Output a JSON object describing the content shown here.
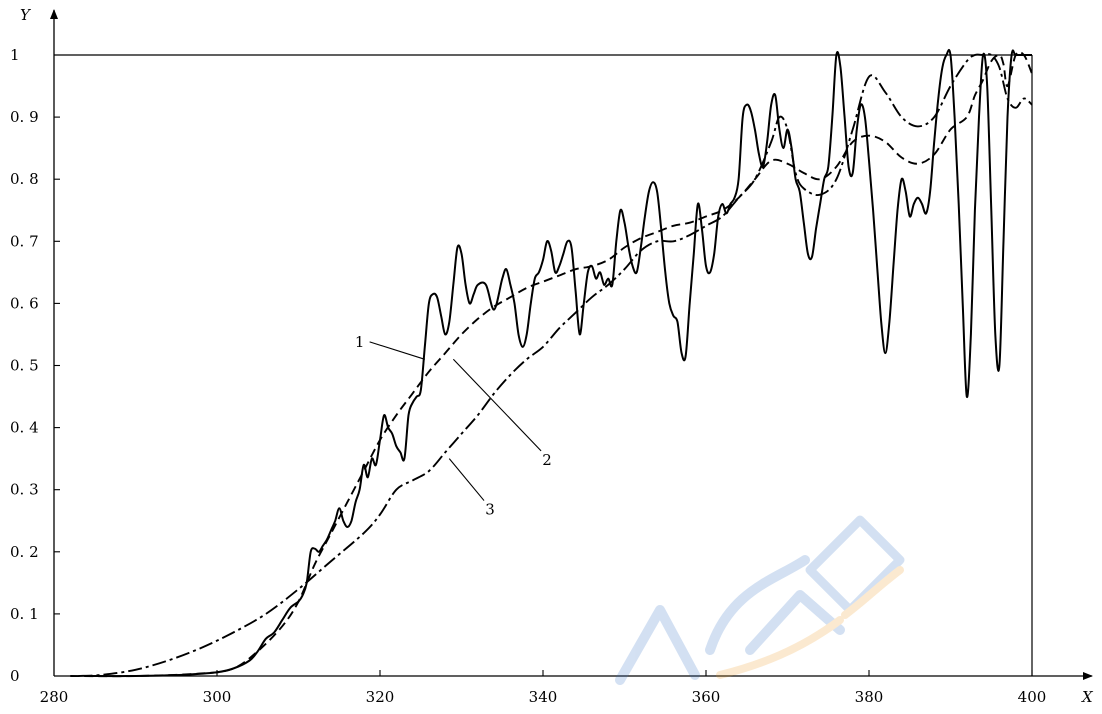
{
  "chart_data": {
    "type": "line",
    "title": "",
    "xlabel": "X",
    "ylabel": "Y",
    "xlim": [
      280,
      400
    ],
    "ylim": [
      0,
      1
    ],
    "grid": false,
    "x_ticks": [
      "280",
      "300",
      "320",
      "340",
      "360",
      "380",
      "400"
    ],
    "y_ticks": [
      "0",
      "0.1",
      "0.2",
      "0.3",
      "0.4",
      "0.5",
      "0.6",
      "0.7",
      "0.8",
      "0.9",
      "1"
    ],
    "series": [
      {
        "name": "1",
        "style": "solid",
        "points": [
          [
            284,
            0
          ],
          [
            290,
            0
          ],
          [
            296,
            0.002
          ],
          [
            300,
            0.006
          ],
          [
            302,
            0.012
          ],
          [
            304,
            0.025
          ],
          [
            305,
            0.04
          ],
          [
            306,
            0.06
          ],
          [
            307,
            0.07
          ],
          [
            308,
            0.09
          ],
          [
            309,
            0.11
          ],
          [
            310,
            0.12
          ],
          [
            310.5,
            0.13
          ],
          [
            311,
            0.15
          ],
          [
            311.5,
            0.2
          ],
          [
            312,
            0.205
          ],
          [
            312.5,
            0.2
          ],
          [
            313,
            0.21
          ],
          [
            313.5,
            0.22
          ],
          [
            314,
            0.235
          ],
          [
            314.5,
            0.25
          ],
          [
            315,
            0.27
          ],
          [
            315.5,
            0.25
          ],
          [
            316,
            0.24
          ],
          [
            316.5,
            0.25
          ],
          [
            317,
            0.28
          ],
          [
            317.5,
            0.3
          ],
          [
            318,
            0.34
          ],
          [
            318.5,
            0.32
          ],
          [
            319,
            0.35
          ],
          [
            319.5,
            0.34
          ],
          [
            320,
            0.38
          ],
          [
            320.5,
            0.42
          ],
          [
            321,
            0.4
          ],
          [
            321.5,
            0.39
          ],
          [
            322,
            0.37
          ],
          [
            322.5,
            0.36
          ],
          [
            323,
            0.35
          ],
          [
            323.5,
            0.42
          ],
          [
            324,
            0.44
          ],
          [
            324.5,
            0.45
          ],
          [
            325,
            0.46
          ],
          [
            325.5,
            0.53
          ],
          [
            326,
            0.6
          ],
          [
            326.5,
            0.615
          ],
          [
            327,
            0.61
          ],
          [
            327.5,
            0.58
          ],
          [
            328,
            0.55
          ],
          [
            328.5,
            0.57
          ],
          [
            329,
            0.63
          ],
          [
            329.5,
            0.69
          ],
          [
            330,
            0.68
          ],
          [
            330.5,
            0.63
          ],
          [
            331,
            0.6
          ],
          [
            331.5,
            0.615
          ],
          [
            332,
            0.63
          ],
          [
            333,
            0.63
          ],
          [
            334,
            0.59
          ],
          [
            335,
            0.64
          ],
          [
            335.5,
            0.655
          ],
          [
            336,
            0.63
          ],
          [
            336.5,
            0.6
          ],
          [
            337,
            0.55
          ],
          [
            337.5,
            0.53
          ],
          [
            338,
            0.55
          ],
          [
            338.5,
            0.6
          ],
          [
            339,
            0.64
          ],
          [
            339.5,
            0.65
          ],
          [
            340,
            0.67
          ],
          [
            340.5,
            0.7
          ],
          [
            341,
            0.685
          ],
          [
            341.5,
            0.65
          ],
          [
            342,
            0.66
          ],
          [
            342.5,
            0.68
          ],
          [
            343,
            0.7
          ],
          [
            343.5,
            0.69
          ],
          [
            344,
            0.62
          ],
          [
            344.5,
            0.55
          ],
          [
            345,
            0.6
          ],
          [
            345.5,
            0.65
          ],
          [
            346,
            0.66
          ],
          [
            346.5,
            0.64
          ],
          [
            347,
            0.65
          ],
          [
            347.5,
            0.63
          ],
          [
            348,
            0.64
          ],
          [
            348.5,
            0.63
          ],
          [
            349,
            0.7
          ],
          [
            349.5,
            0.75
          ],
          [
            350,
            0.73
          ],
          [
            350.5,
            0.69
          ],
          [
            351,
            0.66
          ],
          [
            351.5,
            0.65
          ],
          [
            352,
            0.69
          ],
          [
            352.5,
            0.74
          ],
          [
            353,
            0.78
          ],
          [
            353.5,
            0.795
          ],
          [
            354,
            0.78
          ],
          [
            354.5,
            0.72
          ],
          [
            355,
            0.65
          ],
          [
            355.5,
            0.6
          ],
          [
            356,
            0.58
          ],
          [
            356.5,
            0.57
          ],
          [
            357,
            0.52
          ],
          [
            357.5,
            0.515
          ],
          [
            358,
            0.6
          ],
          [
            358.5,
            0.68
          ],
          [
            359,
            0.76
          ],
          [
            359.5,
            0.72
          ],
          [
            360,
            0.66
          ],
          [
            360.5,
            0.65
          ],
          [
            361,
            0.68
          ],
          [
            361.5,
            0.74
          ],
          [
            362,
            0.76
          ],
          [
            362.5,
            0.745
          ],
          [
            363,
            0.76
          ],
          [
            363.5,
            0.77
          ],
          [
            364,
            0.8
          ],
          [
            364.5,
            0.9
          ],
          [
            365,
            0.92
          ],
          [
            365.5,
            0.91
          ],
          [
            366,
            0.88
          ],
          [
            366.5,
            0.84
          ],
          [
            367,
            0.82
          ],
          [
            367.5,
            0.86
          ],
          [
            368,
            0.92
          ],
          [
            368.5,
            0.935
          ],
          [
            369,
            0.88
          ],
          [
            369.5,
            0.85
          ],
          [
            370,
            0.88
          ],
          [
            370.5,
            0.85
          ],
          [
            371,
            0.8
          ],
          [
            371.5,
            0.78
          ],
          [
            372,
            0.73
          ],
          [
            372.5,
            0.68
          ],
          [
            373,
            0.675
          ],
          [
            373.5,
            0.72
          ],
          [
            374,
            0.76
          ],
          [
            374.5,
            0.8
          ],
          [
            375,
            0.82
          ],
          [
            375.5,
            0.9
          ],
          [
            376,
            1
          ],
          [
            376.5,
            0.98
          ],
          [
            377,
            0.9
          ],
          [
            377.5,
            0.82
          ],
          [
            378,
            0.81
          ],
          [
            378.5,
            0.88
          ],
          [
            379,
            0.92
          ],
          [
            379.5,
            0.9
          ],
          [
            380,
            0.83
          ],
          [
            380.5,
            0.75
          ],
          [
            381,
            0.66
          ],
          [
            381.5,
            0.57
          ],
          [
            382,
            0.52
          ],
          [
            382.5,
            0.57
          ],
          [
            383,
            0.66
          ],
          [
            383.5,
            0.75
          ],
          [
            384,
            0.8
          ],
          [
            384.5,
            0.78
          ],
          [
            385,
            0.74
          ],
          [
            385.5,
            0.76
          ],
          [
            386,
            0.77
          ],
          [
            386.5,
            0.76
          ],
          [
            387,
            0.745
          ],
          [
            387.5,
            0.78
          ],
          [
            388,
            0.86
          ],
          [
            388.5,
            0.93
          ],
          [
            389,
            0.98
          ],
          [
            389.5,
            1
          ],
          [
            390,
            1
          ],
          [
            390.5,
            0.9
          ],
          [
            391,
            0.76
          ],
          [
            391.5,
            0.6
          ],
          [
            392,
            0.45
          ],
          [
            392.5,
            0.55
          ],
          [
            393,
            0.75
          ],
          [
            393.5,
            0.9
          ],
          [
            394,
            1
          ],
          [
            394.5,
            0.95
          ],
          [
            395,
            0.75
          ],
          [
            395.5,
            0.55
          ],
          [
            396,
            0.5
          ],
          [
            396.5,
            0.7
          ],
          [
            397,
            0.9
          ],
          [
            397.5,
            1
          ],
          [
            398,
            1
          ],
          [
            399,
            1
          ],
          [
            400,
            1
          ]
        ]
      },
      {
        "name": "2",
        "style": "dashed",
        "points": [
          [
            282,
            0
          ],
          [
            290,
            0
          ],
          [
            298,
            0.004
          ],
          [
            302,
            0.012
          ],
          [
            305,
            0.04
          ],
          [
            308,
            0.08
          ],
          [
            310,
            0.12
          ],
          [
            312,
            0.18
          ],
          [
            314,
            0.23
          ],
          [
            316,
            0.28
          ],
          [
            318,
            0.33
          ],
          [
            320,
            0.38
          ],
          [
            322,
            0.42
          ],
          [
            324,
            0.455
          ],
          [
            326,
            0.49
          ],
          [
            328,
            0.52
          ],
          [
            330,
            0.55
          ],
          [
            332,
            0.575
          ],
          [
            334,
            0.595
          ],
          [
            336,
            0.61
          ],
          [
            338,
            0.625
          ],
          [
            340,
            0.635
          ],
          [
            342,
            0.645
          ],
          [
            344,
            0.655
          ],
          [
            346,
            0.66
          ],
          [
            348,
            0.67
          ],
          [
            350,
            0.69
          ],
          [
            352,
            0.705
          ],
          [
            354,
            0.715
          ],
          [
            356,
            0.725
          ],
          [
            358,
            0.73
          ],
          [
            360,
            0.74
          ],
          [
            362,
            0.75
          ],
          [
            364,
            0.77
          ],
          [
            366,
            0.8
          ],
          [
            368,
            0.83
          ],
          [
            370,
            0.825
          ],
          [
            372,
            0.81
          ],
          [
            374,
            0.8
          ],
          [
            376,
            0.82
          ],
          [
            378,
            0.86
          ],
          [
            380,
            0.87
          ],
          [
            382,
            0.86
          ],
          [
            384,
            0.835
          ],
          [
            386,
            0.825
          ],
          [
            388,
            0.84
          ],
          [
            390,
            0.88
          ],
          [
            392,
            0.9
          ],
          [
            393,
            0.935
          ],
          [
            394,
            0.96
          ],
          [
            395,
            0.99
          ],
          [
            396,
            1
          ],
          [
            396.5,
            0.985
          ],
          [
            397,
            0.95
          ],
          [
            398,
            1
          ],
          [
            399,
            1
          ],
          [
            400,
            0.97
          ]
        ]
      },
      {
        "name": "3",
        "style": "dashdot",
        "points": [
          [
            283,
            0
          ],
          [
            286,
            0.002
          ],
          [
            290,
            0.01
          ],
          [
            294,
            0.025
          ],
          [
            298,
            0.045
          ],
          [
            302,
            0.07
          ],
          [
            306,
            0.1
          ],
          [
            310,
            0.14
          ],
          [
            314,
            0.185
          ],
          [
            318,
            0.23
          ],
          [
            320,
            0.26
          ],
          [
            322,
            0.3
          ],
          [
            324,
            0.315
          ],
          [
            326,
            0.33
          ],
          [
            328,
            0.36
          ],
          [
            330,
            0.39
          ],
          [
            332,
            0.42
          ],
          [
            334,
            0.455
          ],
          [
            336,
            0.485
          ],
          [
            338,
            0.51
          ],
          [
            340,
            0.53
          ],
          [
            342,
            0.56
          ],
          [
            344,
            0.585
          ],
          [
            346,
            0.61
          ],
          [
            348,
            0.63
          ],
          [
            350,
            0.655
          ],
          [
            352,
            0.685
          ],
          [
            354,
            0.7
          ],
          [
            356,
            0.7
          ],
          [
            358,
            0.71
          ],
          [
            360,
            0.725
          ],
          [
            362,
            0.74
          ],
          [
            364,
            0.77
          ],
          [
            366,
            0.8
          ],
          [
            368,
            0.86
          ],
          [
            369,
            0.9
          ],
          [
            370,
            0.88
          ],
          [
            371,
            0.81
          ],
          [
            372,
            0.785
          ],
          [
            374,
            0.775
          ],
          [
            376,
            0.8
          ],
          [
            378,
            0.88
          ],
          [
            380,
            0.965
          ],
          [
            382,
            0.94
          ],
          [
            384,
            0.9
          ],
          [
            386,
            0.885
          ],
          [
            388,
            0.9
          ],
          [
            390,
            0.95
          ],
          [
            392,
            0.99
          ],
          [
            393,
            1
          ],
          [
            394,
            1
          ],
          [
            395,
            1
          ],
          [
            396,
            0.98
          ],
          [
            397,
            0.93
          ],
          [
            398,
            0.915
          ],
          [
            399,
            0.93
          ],
          [
            400,
            0.92
          ]
        ]
      }
    ],
    "annotations": [
      {
        "text": "1",
        "label_at": [
          317.5,
          0.53
        ],
        "points_to": [
          325.5,
          0.51
        ]
      },
      {
        "text": "2",
        "label_at": [
          340.5,
          0.34
        ],
        "points_to": [
          329,
          0.51
        ]
      },
      {
        "text": "3",
        "label_at": [
          333.5,
          0.26
        ],
        "points_to": [
          328.5,
          0.35
        ]
      }
    ]
  }
}
